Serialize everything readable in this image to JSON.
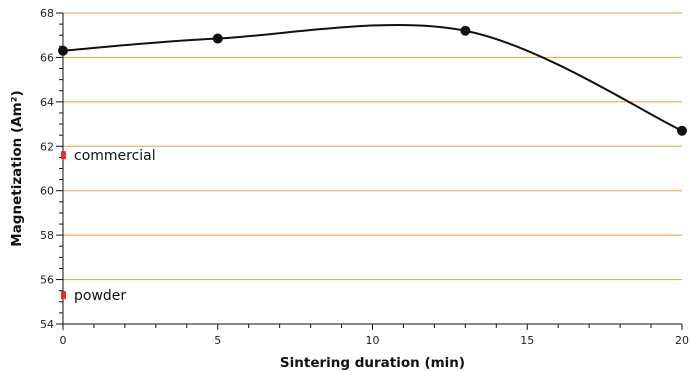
{
  "chart_data": {
    "type": "line",
    "title": "",
    "xlabel": "Sintering duration (min)",
    "ylabel": "Magnetization (Am²)",
    "xlim": [
      0,
      20
    ],
    "ylim": [
      54,
      68
    ],
    "x_ticks": [
      0,
      5,
      10,
      15,
      20
    ],
    "y_ticks": [
      54,
      56,
      58,
      60,
      62,
      64,
      66,
      68
    ],
    "grid": "horizontal",
    "grid_color": "#e8a040",
    "line_color": "#111111",
    "marker_color": "#111111",
    "series": [
      {
        "x": [
          0,
          5,
          13,
          20
        ],
        "y": [
          66.3,
          66.85,
          67.2,
          62.7
        ],
        "smoothed": true
      }
    ],
    "reference_points": [
      {
        "label": "commercial",
        "x": 0,
        "y": 61.6,
        "color": "#e03030"
      },
      {
        "label": "powder",
        "x": 0,
        "y": 55.3,
        "color": "#e03030"
      }
    ]
  }
}
